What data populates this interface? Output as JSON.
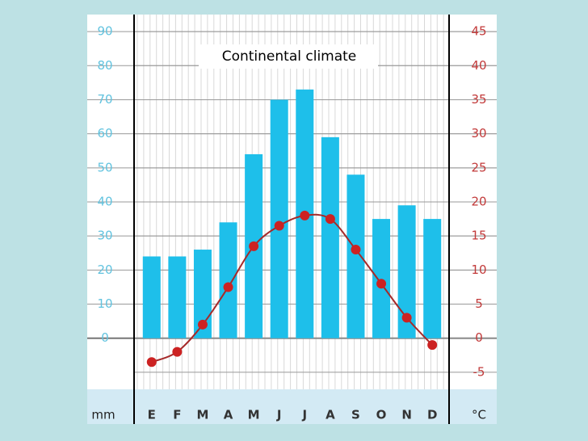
{
  "chart_data": {
    "type": "bar",
    "title": "Continental climate",
    "ylabel": "mm",
    "y2label": "°C",
    "categories": [
      "E",
      "F",
      "M",
      "A",
      "M",
      "J",
      "J",
      "A",
      "S",
      "O",
      "N",
      "D"
    ],
    "series": [
      {
        "type": "bar",
        "color": "#1ebfea",
        "values": [
          24,
          24,
          26,
          34,
          54,
          70,
          73,
          59,
          48,
          35,
          39,
          35
        ]
      },
      {
        "type": "line",
        "axis": "y2",
        "color": "#a52a2a",
        "marker_color": "#cc2222",
        "values": [
          -3.5,
          -2,
          2,
          7.5,
          13.5,
          16.5,
          18,
          17.5,
          13,
          8,
          3,
          -1
        ]
      }
    ],
    "ylim": [
      -15,
      95
    ],
    "yticks": [
      0,
      10,
      20,
      30,
      40,
      50,
      60,
      70,
      80,
      90
    ],
    "y2lim": [
      -7.5,
      47.5
    ],
    "y2ticks": [
      -5,
      0,
      5,
      10,
      15,
      20,
      25,
      30,
      35,
      40,
      45
    ],
    "grid": true
  }
}
